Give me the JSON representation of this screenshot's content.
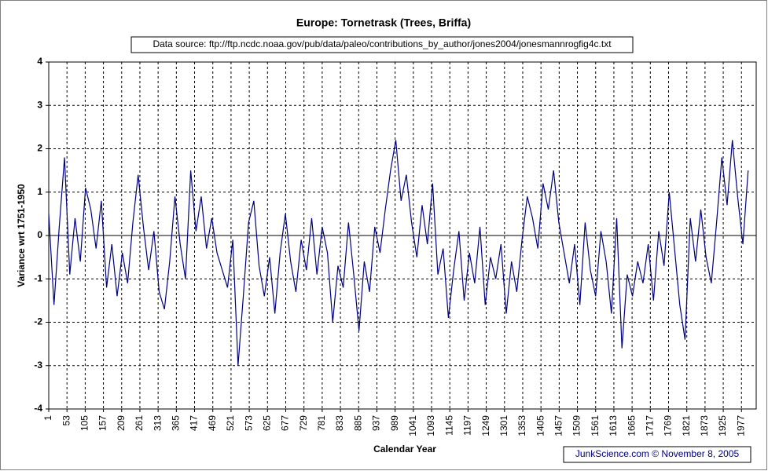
{
  "chart_data": {
    "type": "line",
    "title": "Europe: Tornetrask (Trees, Briffa)",
    "source": "Data source: ftp://ftp.ncdc.noaa.gov/pub/data/paleo/contributions_by_author/jones2004/jonesmannrogfig4c.txt",
    "credit": "JunkScience.com ©  November 8, 2005",
    "xlabel": "Calendar Year",
    "ylabel": "Variance wrt 1751-1950",
    "color": "#000080",
    "grid": true,
    "xlim": [
      1,
      2019
    ],
    "ylim": [
      -4,
      4
    ],
    "yticks": [
      -4,
      -3,
      -2,
      -1,
      0,
      1,
      2,
      3,
      4
    ],
    "xticks": [
      1,
      53,
      105,
      157,
      209,
      261,
      313,
      365,
      417,
      469,
      521,
      573,
      625,
      677,
      729,
      781,
      833,
      885,
      937,
      989,
      1041,
      1093,
      1145,
      1197,
      1249,
      1301,
      1353,
      1405,
      1457,
      1509,
      1561,
      1613,
      1665,
      1717,
      1769,
      1821,
      1873,
      1925,
      1977
    ],
    "x": [
      1,
      16,
      31,
      46,
      61,
      76,
      91,
      106,
      121,
      136,
      151,
      166,
      181,
      196,
      211,
      226,
      241,
      256,
      271,
      286,
      301,
      316,
      331,
      346,
      361,
      376,
      391,
      406,
      421,
      436,
      451,
      466,
      481,
      496,
      511,
      526,
      541,
      556,
      571,
      586,
      601,
      616,
      631,
      646,
      661,
      676,
      691,
      706,
      721,
      736,
      751,
      766,
      781,
      796,
      811,
      826,
      841,
      856,
      871,
      886,
      901,
      916,
      931,
      946,
      961,
      976,
      991,
      1006,
      1021,
      1036,
      1051,
      1066,
      1081,
      1096,
      1111,
      1126,
      1141,
      1156,
      1171,
      1186,
      1201,
      1216,
      1231,
      1246,
      1261,
      1276,
      1291,
      1306,
      1321,
      1336,
      1351,
      1366,
      1381,
      1396,
      1411,
      1426,
      1441,
      1456,
      1471,
      1486,
      1501,
      1516,
      1531,
      1546,
      1561,
      1576,
      1591,
      1606,
      1621,
      1636,
      1651,
      1666,
      1681,
      1696,
      1711,
      1726,
      1741,
      1756,
      1771,
      1786,
      1801,
      1816,
      1831,
      1846,
      1861,
      1876,
      1891,
      1906,
      1921,
      1936,
      1951,
      1966,
      1981,
      1996
    ],
    "values": [
      0.5,
      -1.6,
      0.2,
      1.8,
      -0.9,
      0.4,
      -0.6,
      1.1,
      0.6,
      -0.3,
      0.8,
      -1.2,
      -0.2,
      -1.4,
      -0.4,
      -1.1,
      0.3,
      1.4,
      0.2,
      -0.8,
      0.1,
      -1.3,
      -1.7,
      -0.6,
      0.9,
      -0.2,
      -1.0,
      1.5,
      0.1,
      0.9,
      -0.3,
      0.4,
      -0.4,
      -0.8,
      -1.2,
      -0.1,
      -3.0,
      -1.4,
      0.3,
      0.8,
      -0.7,
      -1.4,
      -0.5,
      -1.8,
      -0.4,
      0.5,
      -0.6,
      -1.3,
      -0.1,
      -0.8,
      0.4,
      -0.9,
      0.2,
      -0.4,
      -2.0,
      -0.7,
      -1.2,
      0.3,
      -0.9,
      -2.2,
      -0.6,
      -1.3,
      0.2,
      -0.4,
      0.6,
      1.5,
      2.2,
      0.8,
      1.4,
      0.3,
      -0.5,
      0.7,
      -0.2,
      1.2,
      -0.9,
      -0.3,
      -1.9,
      -0.8,
      0.1,
      -1.5,
      -0.4,
      -1.1,
      0.2,
      -1.6,
      -0.5,
      -1.0,
      -0.2,
      -1.8,
      -0.6,
      -1.3,
      -0.1,
      0.9,
      0.4,
      -0.3,
      1.2,
      0.6,
      1.5,
      0.3,
      -0.4,
      -1.1,
      -0.2,
      -1.6,
      0.3,
      -0.8,
      -1.4,
      0.1,
      -0.6,
      -1.8,
      0.4,
      -2.6,
      -0.9,
      -1.4,
      -0.6,
      -1.1,
      -0.2,
      -1.5,
      0.1,
      -0.7,
      1.0,
      -0.3,
      -1.6,
      -2.4,
      0.4,
      -0.6,
      0.6,
      -0.5,
      -1.1,
      0.3,
      1.8,
      0.7,
      2.2,
      0.9,
      -0.2,
      1.5
    ]
  }
}
